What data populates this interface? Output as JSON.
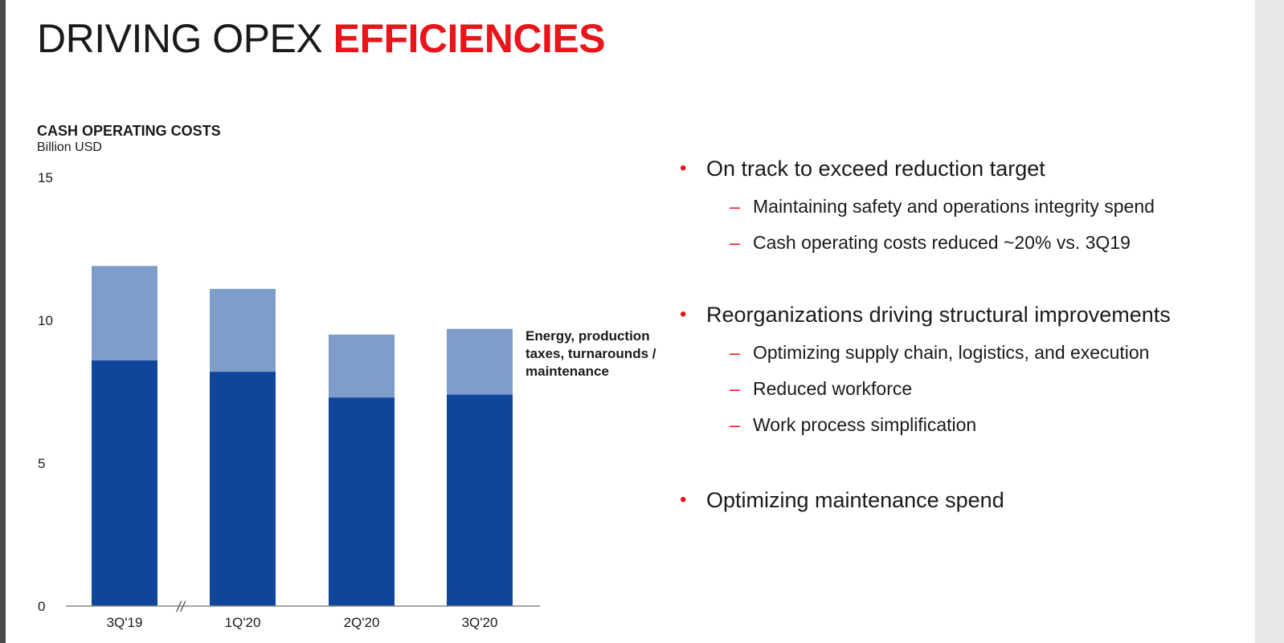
{
  "title": {
    "part1": "DRIVING OPEX",
    "part2": "EFFICIENCIES"
  },
  "chart": {
    "title": "CASH OPERATING COSTS",
    "unit": "Billion USD",
    "legend_label": "Energy, production taxes, turnarounds / maintenance"
  },
  "chart_data": {
    "type": "bar",
    "stacked": true,
    "title": "CASH OPERATING COSTS",
    "ylabel": "Billion USD",
    "xlabel": "",
    "ylim": [
      0,
      15
    ],
    "yticks": [
      0,
      5,
      10,
      15
    ],
    "categories": [
      "3Q'19",
      "1Q'20",
      "2Q'20",
      "3Q'20"
    ],
    "axis_break_after": "3Q'19",
    "series": [
      {
        "values": [
          8.6,
          8.2,
          7.3,
          7.4
        ],
        "color": "#0f469b"
      },
      {
        "name": "Energy, production taxes, turnarounds / maintenance",
        "values": [
          3.3,
          2.9,
          2.2,
          2.3
        ],
        "color": "#7f9dca"
      }
    ],
    "grid": false
  },
  "bullets": [
    {
      "text": "On track to exceed reduction target",
      "subs": [
        "Maintaining safety and operations integrity spend",
        "Cash operating costs reduced ~20% vs. 3Q19"
      ]
    },
    {
      "text": "Reorganizations driving structural improvements",
      "subs": [
        "Optimizing supply chain, logistics, and execution",
        "Reduced workforce",
        "Work process simplification"
      ]
    },
    {
      "text": "Optimizing maintenance spend",
      "subs": []
    }
  ],
  "colors": {
    "accent": "#e8151b",
    "bar_dark": "#0f469b",
    "bar_light": "#7f9dca"
  },
  "symbols": {
    "bullet": "•",
    "dash": "–",
    "axis_break": "//"
  }
}
